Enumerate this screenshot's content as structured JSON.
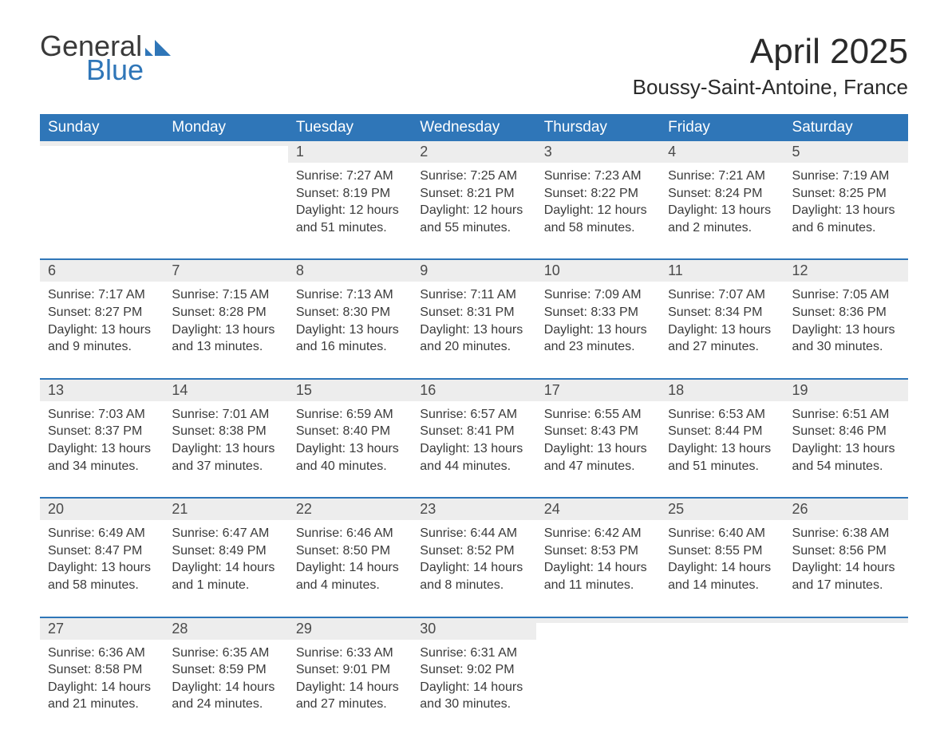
{
  "logo": {
    "word1": "General",
    "word2": "Blue",
    "mark_color": "#2f76b8"
  },
  "header": {
    "month_title": "April 2025",
    "location": "Boussy-Saint-Antoine, France"
  },
  "styling": {
    "header_bg": "#2f76b8",
    "header_text": "#ffffff",
    "daynum_bg": "#ededed",
    "week_border": "#2f76b8",
    "body_text": "#3a3a3a",
    "page_bg": "#ffffff",
    "month_fontsize": 44,
    "location_fontsize": 26,
    "dow_fontsize": 19,
    "body_fontsize": 16
  },
  "days_of_week": [
    "Sunday",
    "Monday",
    "Tuesday",
    "Wednesday",
    "Thursday",
    "Friday",
    "Saturday"
  ],
  "weeks": [
    [
      {
        "n": "",
        "sr": "",
        "ss": "",
        "dl": ""
      },
      {
        "n": "",
        "sr": "",
        "ss": "",
        "dl": ""
      },
      {
        "n": "1",
        "sr": "Sunrise: 7:27 AM",
        "ss": "Sunset: 8:19 PM",
        "dl": "Daylight: 12 hours and 51 minutes."
      },
      {
        "n": "2",
        "sr": "Sunrise: 7:25 AM",
        "ss": "Sunset: 8:21 PM",
        "dl": "Daylight: 12 hours and 55 minutes."
      },
      {
        "n": "3",
        "sr": "Sunrise: 7:23 AM",
        "ss": "Sunset: 8:22 PM",
        "dl": "Daylight: 12 hours and 58 minutes."
      },
      {
        "n": "4",
        "sr": "Sunrise: 7:21 AM",
        "ss": "Sunset: 8:24 PM",
        "dl": "Daylight: 13 hours and 2 minutes."
      },
      {
        "n": "5",
        "sr": "Sunrise: 7:19 AM",
        "ss": "Sunset: 8:25 PM",
        "dl": "Daylight: 13 hours and 6 minutes."
      }
    ],
    [
      {
        "n": "6",
        "sr": "Sunrise: 7:17 AM",
        "ss": "Sunset: 8:27 PM",
        "dl": "Daylight: 13 hours and 9 minutes."
      },
      {
        "n": "7",
        "sr": "Sunrise: 7:15 AM",
        "ss": "Sunset: 8:28 PM",
        "dl": "Daylight: 13 hours and 13 minutes."
      },
      {
        "n": "8",
        "sr": "Sunrise: 7:13 AM",
        "ss": "Sunset: 8:30 PM",
        "dl": "Daylight: 13 hours and 16 minutes."
      },
      {
        "n": "9",
        "sr": "Sunrise: 7:11 AM",
        "ss": "Sunset: 8:31 PM",
        "dl": "Daylight: 13 hours and 20 minutes."
      },
      {
        "n": "10",
        "sr": "Sunrise: 7:09 AM",
        "ss": "Sunset: 8:33 PM",
        "dl": "Daylight: 13 hours and 23 minutes."
      },
      {
        "n": "11",
        "sr": "Sunrise: 7:07 AM",
        "ss": "Sunset: 8:34 PM",
        "dl": "Daylight: 13 hours and 27 minutes."
      },
      {
        "n": "12",
        "sr": "Sunrise: 7:05 AM",
        "ss": "Sunset: 8:36 PM",
        "dl": "Daylight: 13 hours and 30 minutes."
      }
    ],
    [
      {
        "n": "13",
        "sr": "Sunrise: 7:03 AM",
        "ss": "Sunset: 8:37 PM",
        "dl": "Daylight: 13 hours and 34 minutes."
      },
      {
        "n": "14",
        "sr": "Sunrise: 7:01 AM",
        "ss": "Sunset: 8:38 PM",
        "dl": "Daylight: 13 hours and 37 minutes."
      },
      {
        "n": "15",
        "sr": "Sunrise: 6:59 AM",
        "ss": "Sunset: 8:40 PM",
        "dl": "Daylight: 13 hours and 40 minutes."
      },
      {
        "n": "16",
        "sr": "Sunrise: 6:57 AM",
        "ss": "Sunset: 8:41 PM",
        "dl": "Daylight: 13 hours and 44 minutes."
      },
      {
        "n": "17",
        "sr": "Sunrise: 6:55 AM",
        "ss": "Sunset: 8:43 PM",
        "dl": "Daylight: 13 hours and 47 minutes."
      },
      {
        "n": "18",
        "sr": "Sunrise: 6:53 AM",
        "ss": "Sunset: 8:44 PM",
        "dl": "Daylight: 13 hours and 51 minutes."
      },
      {
        "n": "19",
        "sr": "Sunrise: 6:51 AM",
        "ss": "Sunset: 8:46 PM",
        "dl": "Daylight: 13 hours and 54 minutes."
      }
    ],
    [
      {
        "n": "20",
        "sr": "Sunrise: 6:49 AM",
        "ss": "Sunset: 8:47 PM",
        "dl": "Daylight: 13 hours and 58 minutes."
      },
      {
        "n": "21",
        "sr": "Sunrise: 6:47 AM",
        "ss": "Sunset: 8:49 PM",
        "dl": "Daylight: 14 hours and 1 minute."
      },
      {
        "n": "22",
        "sr": "Sunrise: 6:46 AM",
        "ss": "Sunset: 8:50 PM",
        "dl": "Daylight: 14 hours and 4 minutes."
      },
      {
        "n": "23",
        "sr": "Sunrise: 6:44 AM",
        "ss": "Sunset: 8:52 PM",
        "dl": "Daylight: 14 hours and 8 minutes."
      },
      {
        "n": "24",
        "sr": "Sunrise: 6:42 AM",
        "ss": "Sunset: 8:53 PM",
        "dl": "Daylight: 14 hours and 11 minutes."
      },
      {
        "n": "25",
        "sr": "Sunrise: 6:40 AM",
        "ss": "Sunset: 8:55 PM",
        "dl": "Daylight: 14 hours and 14 minutes."
      },
      {
        "n": "26",
        "sr": "Sunrise: 6:38 AM",
        "ss": "Sunset: 8:56 PM",
        "dl": "Daylight: 14 hours and 17 minutes."
      }
    ],
    [
      {
        "n": "27",
        "sr": "Sunrise: 6:36 AM",
        "ss": "Sunset: 8:58 PM",
        "dl": "Daylight: 14 hours and 21 minutes."
      },
      {
        "n": "28",
        "sr": "Sunrise: 6:35 AM",
        "ss": "Sunset: 8:59 PM",
        "dl": "Daylight: 14 hours and 24 minutes."
      },
      {
        "n": "29",
        "sr": "Sunrise: 6:33 AM",
        "ss": "Sunset: 9:01 PM",
        "dl": "Daylight: 14 hours and 27 minutes."
      },
      {
        "n": "30",
        "sr": "Sunrise: 6:31 AM",
        "ss": "Sunset: 9:02 PM",
        "dl": "Daylight: 14 hours and 30 minutes."
      },
      {
        "n": "",
        "sr": "",
        "ss": "",
        "dl": ""
      },
      {
        "n": "",
        "sr": "",
        "ss": "",
        "dl": ""
      },
      {
        "n": "",
        "sr": "",
        "ss": "",
        "dl": ""
      }
    ]
  ]
}
